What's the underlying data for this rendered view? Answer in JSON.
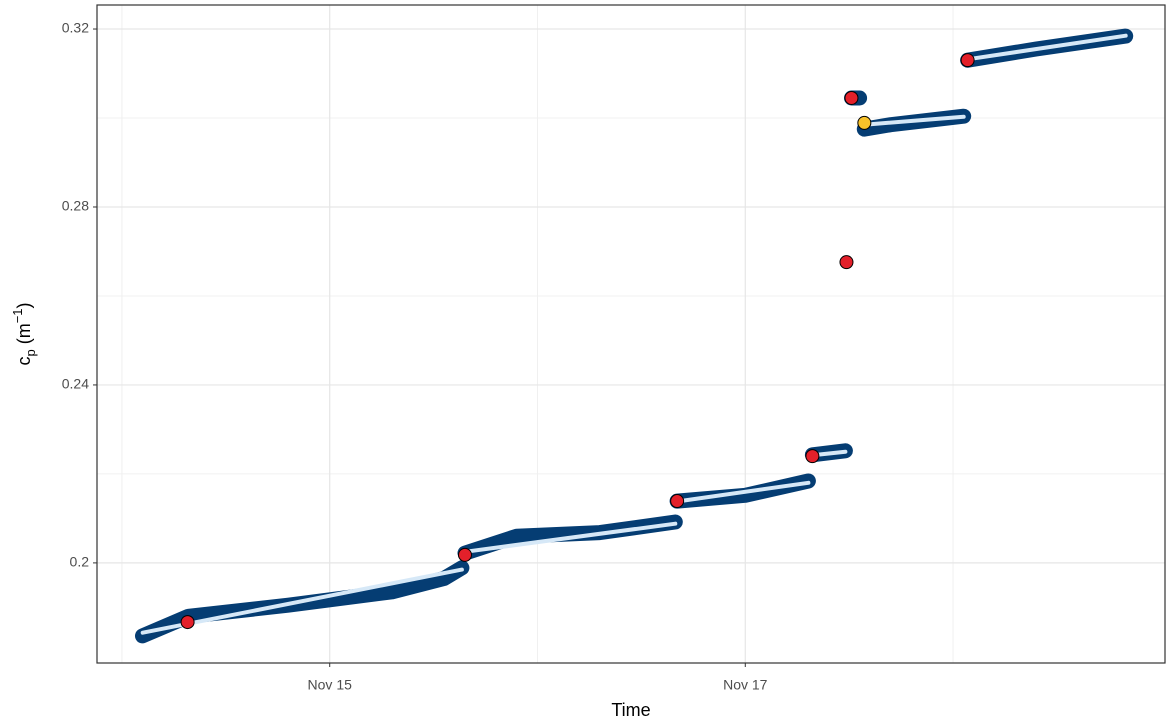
{
  "chart_data": {
    "type": "line",
    "xlabel": "Time",
    "ylabel": [
      "c",
      "p",
      " (m",
      "−1",
      ")"
    ],
    "xlim": [
      13.88,
      19.02
    ],
    "ylim": [
      0.1775,
      0.3254
    ],
    "xticks": [
      {
        "value": 15,
        "label": "Nov 15"
      },
      {
        "value": 17,
        "label": "Nov 17"
      }
    ],
    "yticks": [
      0.2,
      0.24,
      0.28,
      0.32
    ],
    "x_minor": [
      14,
      16,
      18
    ],
    "y_minor": [
      0.22,
      0.26,
      0.3
    ],
    "grid": true,
    "series": [
      {
        "color": "#053d73",
        "style": "band",
        "x": [
          14.099,
          14.32,
          14.8,
          15.3,
          15.55,
          15.636,
          null,
          15.651,
          15.9,
          16.3,
          16.663,
          null,
          16.672,
          17.0,
          17.304,
          null,
          17.323,
          17.482,
          null,
          17.511,
          17.55,
          null,
          17.573,
          17.7,
          18.051,
          null,
          18.07,
          18.4,
          18.831
        ],
        "values": [
          0.1836,
          0.188,
          0.1905,
          0.1935,
          0.1965,
          0.1989,
          null,
          0.2022,
          0.206,
          0.2068,
          0.2092,
          null,
          0.2139,
          0.2152,
          0.2184,
          null,
          0.2243,
          0.2252,
          null,
          0.3045,
          0.3045,
          null,
          0.2975,
          0.2985,
          0.3004,
          null,
          0.313,
          0.3155,
          0.3184
        ]
      },
      {
        "color": "#d6e8f7",
        "style": "line",
        "x": [
          14.1,
          15.636,
          null,
          15.651,
          16.663,
          null,
          16.672,
          17.304,
          null,
          17.323,
          17.482,
          null,
          17.573,
          18.051,
          null,
          18.07,
          18.831
        ],
        "values": [
          0.1843,
          0.1985,
          null,
          0.2025,
          0.2088,
          null,
          0.2138,
          0.218,
          null,
          0.2242,
          0.225,
          null,
          0.2985,
          0.3003,
          null,
          0.3132,
          0.3185
        ]
      },
      {
        "color": "#e3202a",
        "style": "points",
        "x": [
          14.316,
          15.651,
          16.672,
          17.323,
          17.487,
          17.511,
          18.07
        ],
        "values": [
          0.1867,
          0.2018,
          0.2139,
          0.224,
          0.2676,
          0.3045,
          0.313
        ]
      },
      {
        "color": "#f7c22a",
        "style": "points",
        "x": [
          17.573
        ],
        "values": [
          0.2989
        ]
      }
    ]
  }
}
